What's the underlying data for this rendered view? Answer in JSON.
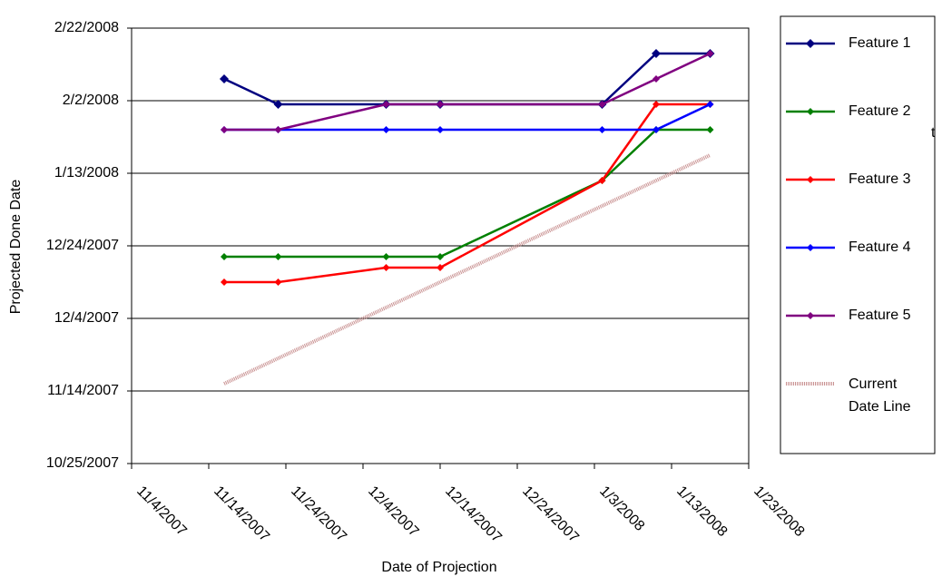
{
  "chart_data": {
    "type": "line",
    "x_label": "Date of Projection",
    "y_label": "Projected Done Date",
    "x": [
      "2007-11-16",
      "2007-11-23",
      "2007-12-07",
      "2007-12-14",
      "2008-01-04",
      "2008-01-11",
      "2008-01-18"
    ],
    "series": [
      {
        "name": "Feature 1",
        "color": "#000080",
        "marker": "diamond",
        "values": [
          "2008-02-08",
          "2008-02-01",
          "2008-02-01",
          "2008-02-01",
          "2008-02-01",
          "2008-02-15",
          "2008-02-15"
        ]
      },
      {
        "name": "Feature 2",
        "color": "#008000",
        "marker": "diamond",
        "values": [
          "2007-12-21",
          "2007-12-21",
          "2007-12-21",
          "2007-12-21",
          "2008-01-11",
          "2008-01-25",
          "2008-01-25"
        ]
      },
      {
        "name": "Feature 3",
        "color": "#ff0000",
        "marker": "diamond",
        "values": [
          "2007-12-14",
          "2007-12-14",
          "2007-12-18",
          "2007-12-18",
          "2008-01-11",
          "2008-02-01",
          "2008-02-01"
        ]
      },
      {
        "name": "Feature 4",
        "color": "#0000ff",
        "marker": "diamond",
        "values": [
          "2008-01-25",
          "2008-01-25",
          "2008-01-25",
          "2008-01-25",
          "2008-01-25",
          "2008-01-25",
          "2008-02-01"
        ]
      },
      {
        "name": "Feature 5",
        "color": "#800080",
        "marker": "diamond",
        "values": [
          "2008-01-25",
          "2008-01-25",
          "2008-02-01",
          "2008-02-01",
          "2008-02-01",
          "2008-02-08",
          "2008-02-15"
        ]
      },
      {
        "name": "Current Date Line",
        "color": "#c89090",
        "marker": "none",
        "values": [
          "2007-11-16",
          "2007-11-23",
          "2007-12-07",
          "2007-12-14",
          "2008-01-04",
          "2008-01-11",
          "2008-01-18"
        ]
      }
    ],
    "xlim": [
      "2007-11-04",
      "2008-01-23"
    ],
    "xticks": [
      {
        "value": "2007-11-04",
        "label": "11/4/2007"
      },
      {
        "value": "2007-11-14",
        "label": "11/14/2007"
      },
      {
        "value": "2007-11-24",
        "label": "11/24/2007"
      },
      {
        "value": "2007-12-04",
        "label": "12/4/2007"
      },
      {
        "value": "2007-12-14",
        "label": "12/14/2007"
      },
      {
        "value": "2007-12-24",
        "label": "12/24/2007"
      },
      {
        "value": "2008-01-03",
        "label": "1/3/2008"
      },
      {
        "value": "2008-01-13",
        "label": "1/13/2008"
      },
      {
        "value": "2008-01-23",
        "label": "1/23/2008"
      }
    ],
    "ylim": [
      "2007-10-25",
      "2008-02-22"
    ],
    "yticks": [
      {
        "value": "2007-10-25",
        "label": "10/25/2007"
      },
      {
        "value": "2007-11-14",
        "label": "11/14/2007"
      },
      {
        "value": "2007-12-04",
        "label": "12/4/2007"
      },
      {
        "value": "2007-12-24",
        "label": "12/24/2007"
      },
      {
        "value": "2008-01-13",
        "label": "1/13/2008"
      },
      {
        "value": "2008-02-02",
        "label": "2/2/2008"
      },
      {
        "value": "2008-02-22",
        "label": "2/22/2008"
      }
    ],
    "grid": true,
    "legend": "right",
    "annotation": "t"
  }
}
